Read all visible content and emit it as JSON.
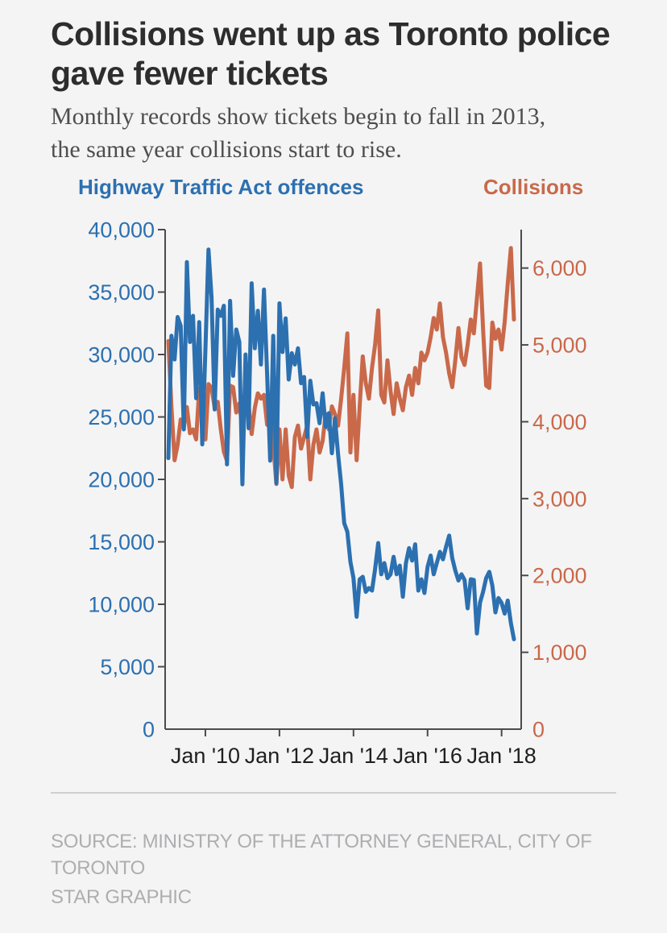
{
  "page": {
    "title": {
      "line1": "Collisions went up as Toronto police",
      "line2": "gave fewer tickets"
    },
    "subtitle": {
      "line1": "Monthly records show tickets begin to fall in 2013,",
      "line2": "the same year collisions start to rise."
    },
    "footer": {
      "source": "SOURCE: MINISTRY OF THE ATTORNEY GENERAL, CITY OF TORONTO",
      "credit": "STAR GRAPHIC"
    }
  },
  "chart_data": {
    "type": "line",
    "x_unit": "month",
    "x_start": "Jan 2009",
    "x_end": "May 2018",
    "grid": false,
    "legend_position": "top",
    "axis_color": "#4b4b4b",
    "x_label_color": "#1f1f1f",
    "x_tick_labels": [
      "Jan '10",
      "Jan '12",
      "Jan '14",
      "Jan '16",
      "Jan '18"
    ],
    "x_tick_month_index": [
      12,
      36,
      60,
      84,
      108
    ],
    "left_axis": {
      "title": "Highway Traffic Act offences",
      "ylim": [
        0,
        40000
      ],
      "tick_values": [
        0,
        5000,
        10000,
        15000,
        20000,
        25000,
        30000,
        35000,
        40000
      ],
      "tick_labels": [
        "0",
        "5,000",
        "10,000",
        "15,000",
        "20,000",
        "25,000",
        "30,000",
        "35,000",
        "40,000"
      ]
    },
    "right_axis": {
      "title": "Collisions",
      "ylim": [
        0,
        6500
      ],
      "tick_values": [
        0,
        1000,
        2000,
        3000,
        4000,
        5000,
        6000
      ],
      "tick_labels": [
        "0",
        "1,000",
        "2,000",
        "3,000",
        "4,000",
        "5,000",
        "6,000"
      ]
    },
    "series": [
      {
        "id": "collisions-line",
        "name": "Collisions",
        "axis": "right",
        "color": "#c9694a",
        "values": [
          5050,
          4200,
          3500,
          3700,
          4030,
          3930,
          4190,
          3850,
          3900,
          3770,
          4430,
          4330,
          3770,
          4490,
          4440,
          4180,
          4260,
          3900,
          3610,
          3490,
          4470,
          4450,
          4120,
          4240,
          3910,
          4460,
          4220,
          3840,
          4180,
          4370,
          4300,
          4350,
          3960,
          4100,
          3700,
          3190,
          3900,
          3250,
          3900,
          3300,
          3150,
          3800,
          3950,
          3650,
          3800,
          3950,
          3250,
          3700,
          3900,
          3600,
          3750,
          4100,
          3900,
          4200,
          4100,
          3950,
          4300,
          4700,
          5150,
          3600,
          4350,
          3500,
          4200,
          4850,
          4500,
          4300,
          4700,
          5000,
          5450,
          4350,
          4250,
          4800,
          4400,
          4100,
          4500,
          4300,
          4150,
          4450,
          4600,
          4350,
          4700,
          4500,
          4900,
          4800,
          4900,
          5100,
          5350,
          5200,
          5540,
          5100,
          4900,
          4630,
          4450,
          4800,
          5220,
          4840,
          4740,
          5000,
          5330,
          5150,
          5600,
          6060,
          5200,
          4470,
          4440,
          5290,
          5080,
          5200,
          4940,
          5300,
          5800,
          6260,
          5330
        ]
      },
      {
        "id": "hta-offences-line",
        "name": "Highway Traffic Act offences",
        "axis": "left",
        "color": "#2c70b0",
        "values": [
          21700,
          31500,
          29600,
          33000,
          32300,
          24000,
          37400,
          31000,
          33100,
          26500,
          32600,
          22800,
          30400,
          38400,
          34600,
          25600,
          33600,
          33100,
          33900,
          21200,
          34300,
          28300,
          32000,
          31000,
          19600,
          30000,
          24100,
          35700,
          30500,
          33500,
          29200,
          35200,
          28400,
          21500,
          31500,
          19700,
          34100,
          30200,
          32900,
          28000,
          30100,
          29200,
          30500,
          27700,
          28200,
          23400,
          27900,
          26000,
          26100,
          24500,
          26900,
          24200,
          25300,
          22100,
          24900,
          22000,
          19600,
          16500,
          15800,
          13400,
          12100,
          9000,
          12000,
          12200,
          11000,
          11300,
          11100,
          12800,
          14900,
          12400,
          13300,
          12100,
          12400,
          13800,
          12400,
          13100,
          10600,
          13300,
          14500,
          13500,
          14800,
          11100,
          12000,
          10900,
          13000,
          13900,
          12400,
          13300,
          14200,
          13600,
          14600,
          15500,
          13700,
          12700,
          11900,
          12400,
          11950,
          9680,
          12000,
          11950,
          7660,
          10130,
          11000,
          12100,
          12600,
          11500,
          9350,
          10500,
          10100,
          9250,
          10300,
          8500,
          7200
        ]
      }
    ]
  }
}
